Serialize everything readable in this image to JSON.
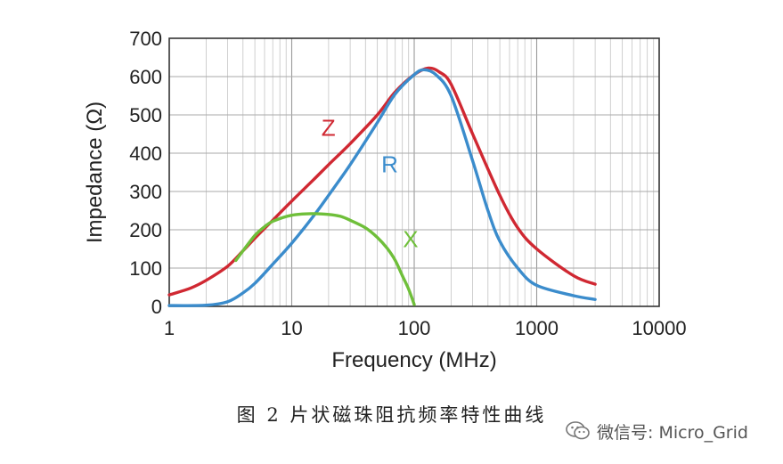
{
  "chart_data": {
    "type": "line",
    "title": "",
    "xlabel": "Frequency (MHz)",
    "ylabel": "Impedance (Ω)",
    "xscale": "log",
    "xlim": [
      1,
      10000
    ],
    "ylim": [
      0,
      700
    ],
    "x_ticks": [
      1,
      10,
      100,
      1000,
      10000
    ],
    "x_tick_labels": [
      "1",
      "10",
      "100",
      "1000",
      "10000"
    ],
    "y_ticks": [
      0,
      100,
      200,
      300,
      400,
      500,
      600,
      700
    ],
    "y_tick_labels": [
      "0",
      "100",
      "200",
      "300",
      "400",
      "500",
      "600",
      "700"
    ],
    "grid": true,
    "legend": "none",
    "series": [
      {
        "name": "Z",
        "color": "#d02832",
        "label_at": [
          1.3,
          445
        ],
        "points": [
          [
            1,
            30
          ],
          [
            1.5,
            48
          ],
          [
            2,
            68
          ],
          [
            3,
            105
          ],
          [
            4,
            145
          ],
          [
            5,
            178
          ],
          [
            7,
            225
          ],
          [
            10,
            275
          ],
          [
            15,
            330
          ],
          [
            20,
            370
          ],
          [
            30,
            425
          ],
          [
            50,
            500
          ],
          [
            70,
            560
          ],
          [
            100,
            605
          ],
          [
            130,
            622
          ],
          [
            160,
            612
          ],
          [
            200,
            580
          ],
          [
            300,
            450
          ],
          [
            500,
            290
          ],
          [
            700,
            205
          ],
          [
            1000,
            150
          ],
          [
            2000,
            80
          ],
          [
            3000,
            58
          ]
        ]
      },
      {
        "name": "R",
        "color": "#3b8ccc",
        "label_at": [
          1.8,
          350
        ],
        "points": [
          [
            1,
            2
          ],
          [
            2,
            3
          ],
          [
            3,
            12
          ],
          [
            4,
            35
          ],
          [
            5,
            60
          ],
          [
            7,
            110
          ],
          [
            10,
            165
          ],
          [
            15,
            235
          ],
          [
            20,
            290
          ],
          [
            30,
            370
          ],
          [
            50,
            480
          ],
          [
            70,
            555
          ],
          [
            100,
            605
          ],
          [
            120,
            618
          ],
          [
            150,
            605
          ],
          [
            200,
            550
          ],
          [
            300,
            380
          ],
          [
            400,
            250
          ],
          [
            500,
            170
          ],
          [
            700,
            100
          ],
          [
            1000,
            55
          ],
          [
            2000,
            28
          ],
          [
            3000,
            18
          ]
        ]
      },
      {
        "name": "X",
        "color": "#6fbf3a",
        "label_at": [
          1.97,
          155
        ],
        "points": [
          [
            3.5,
            120
          ],
          [
            4,
            145
          ],
          [
            5,
            185
          ],
          [
            6,
            208
          ],
          [
            7,
            222
          ],
          [
            10,
            238
          ],
          [
            15,
            242
          ],
          [
            20,
            240
          ],
          [
            25,
            235
          ],
          [
            30,
            225
          ],
          [
            40,
            205
          ],
          [
            50,
            180
          ],
          [
            60,
            152
          ],
          [
            70,
            120
          ],
          [
            80,
            80
          ],
          [
            90,
            45
          ],
          [
            100,
            5
          ]
        ]
      }
    ]
  },
  "caption": "图 2 片状磁珠阻抗频率特性曲线",
  "watermark": {
    "text": "微信号: Micro_Grid",
    "icon": "wechat-icon"
  }
}
